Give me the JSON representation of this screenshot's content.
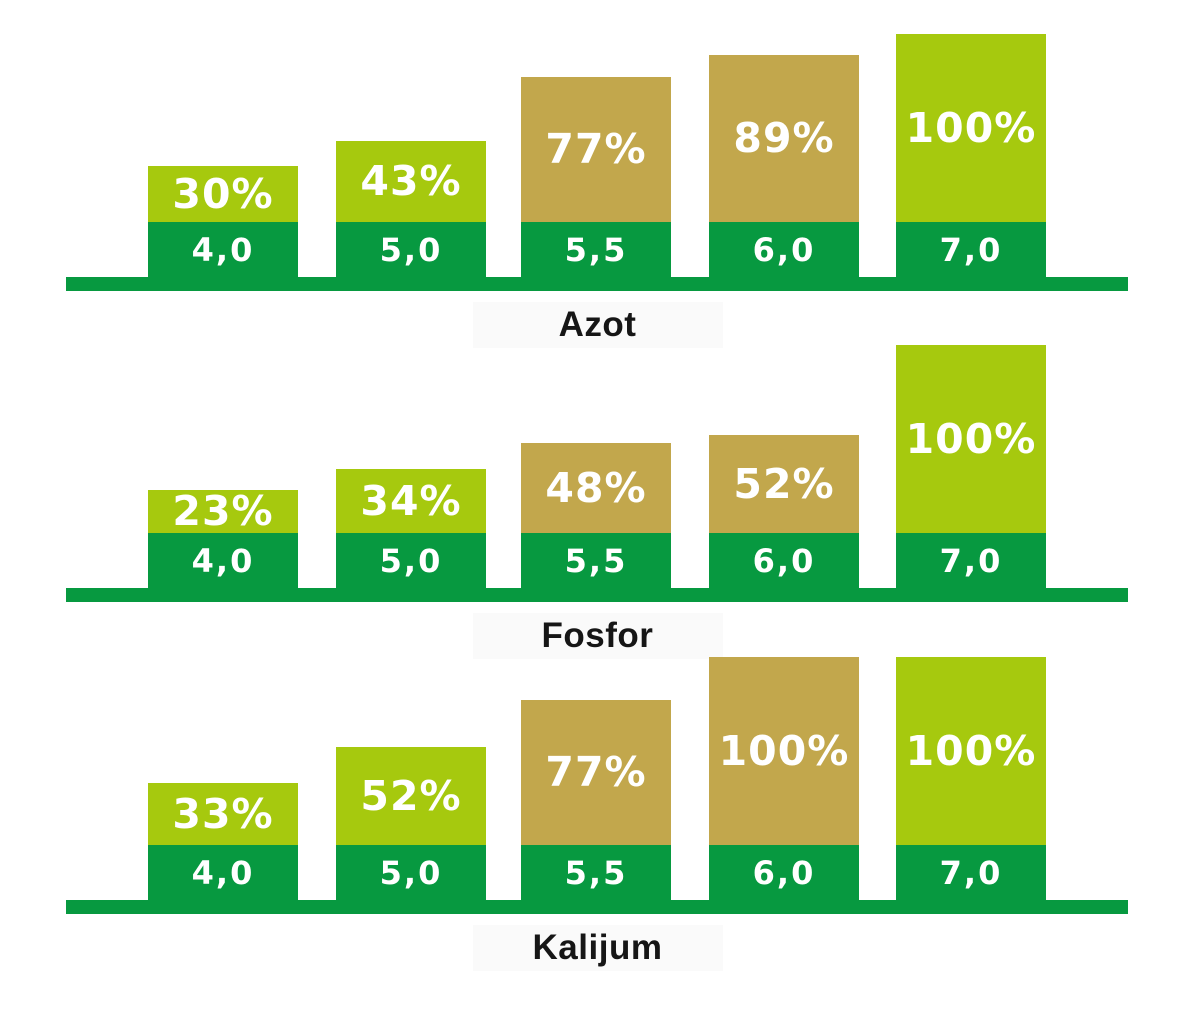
{
  "colors": {
    "axis_green": "#079940",
    "base_green": "#079940",
    "available_green": "#a6c90e",
    "reduced_tan": "#c2a74c",
    "value_text": "#ffffff",
    "title_text": "#161616",
    "title_bg": "#fafafa"
  },
  "chart_data": [
    {
      "type": "bar",
      "title": "Azot",
      "xlabel": "",
      "ylabel": "",
      "unit": "%",
      "ylim": [
        0,
        100
      ],
      "grid": false,
      "legend": false,
      "categories": [
        "4,0",
        "5,0",
        "5,5",
        "6,0",
        "7,0"
      ],
      "values": [
        30,
        43,
        77,
        89,
        100
      ],
      "value_labels": [
        "30%",
        "43%",
        "77%",
        "89%",
        "100%"
      ],
      "bar_color_keys": [
        "available_green",
        "available_green",
        "reduced_tan",
        "reduced_tan",
        "available_green"
      ]
    },
    {
      "type": "bar",
      "title": "Fosfor",
      "xlabel": "",
      "ylabel": "",
      "unit": "%",
      "ylim": [
        0,
        100
      ],
      "grid": false,
      "legend": false,
      "categories": [
        "4,0",
        "5,0",
        "5,5",
        "6,0",
        "7,0"
      ],
      "values": [
        23,
        34,
        48,
        52,
        100
      ],
      "value_labels": [
        "23%",
        "34%",
        "48%",
        "52%",
        "100%"
      ],
      "bar_color_keys": [
        "available_green",
        "available_green",
        "reduced_tan",
        "reduced_tan",
        "available_green"
      ]
    },
    {
      "type": "bar",
      "title": "Kalijum",
      "xlabel": "",
      "ylabel": "",
      "unit": "%",
      "ylim": [
        0,
        100
      ],
      "grid": false,
      "legend": false,
      "categories": [
        "4,0",
        "5,0",
        "5,5",
        "6,0",
        "7,0"
      ],
      "values": [
        33,
        52,
        77,
        100,
        100
      ],
      "value_labels": [
        "33%",
        "52%",
        "77%",
        "100%",
        "100%"
      ],
      "bar_color_keys": [
        "available_green",
        "available_green",
        "reduced_tan",
        "reduced_tan",
        "available_green"
      ]
    }
  ]
}
